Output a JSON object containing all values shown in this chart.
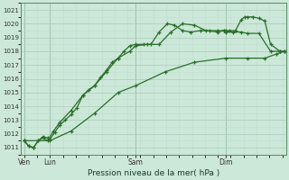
{
  "bg_color": "#cce8d8",
  "grid_color_major": "#aaccbb",
  "grid_color_minor": "#c0ddd0",
  "line_color": "#2a6e2a",
  "xlabel": "Pression niveau de la mer( hPa )",
  "ylim": [
    1010.5,
    1021.5
  ],
  "yticks": [
    1011,
    1012,
    1013,
    1014,
    1015,
    1016,
    1017,
    1018,
    1019,
    1020,
    1021
  ],
  "xlim": [
    -0.3,
    22.3
  ],
  "xtick_positions": [
    0,
    2.2,
    9.5,
    17.2
  ],
  "xtick_labels": [
    "Ven",
    "Lun",
    "Sam",
    "Dim"
  ],
  "vline_positions": [
    0,
    2.2,
    9.5,
    17.2
  ],
  "series1_x": [
    0,
    0.4,
    0.8,
    1.2,
    1.6,
    2.0,
    2.2,
    2.6,
    3.0,
    3.5,
    4.0,
    4.5,
    5.0,
    5.5,
    6.0,
    6.5,
    7.0,
    7.5,
    8.0,
    8.5,
    9.0,
    9.5,
    10.2,
    10.8,
    11.5,
    12.2,
    12.8,
    13.5,
    14.2,
    15.0,
    15.8,
    16.5,
    17.0,
    17.2,
    17.5,
    18.0,
    18.5,
    18.8,
    19.0,
    19.5,
    20.0,
    20.5,
    21.0,
    21.8,
    22.2
  ],
  "series1_y": [
    1011.5,
    1011.1,
    1011.0,
    1011.5,
    1011.8,
    1011.7,
    1011.6,
    1012.1,
    1012.6,
    1013.0,
    1013.4,
    1013.9,
    1014.8,
    1015.2,
    1015.5,
    1016.1,
    1016.6,
    1017.2,
    1017.5,
    1018.0,
    1018.4,
    1018.5,
    1018.5,
    1018.5,
    1019.4,
    1020.0,
    1019.9,
    1019.5,
    1019.4,
    1019.5,
    1019.5,
    1019.5,
    1019.5,
    1019.5,
    1019.5,
    1019.5,
    1020.3,
    1020.5,
    1020.5,
    1020.5,
    1020.4,
    1020.2,
    1018.5,
    1018.0,
    1018.0
  ],
  "series2_x": [
    0,
    0.4,
    0.8,
    1.2,
    1.6,
    2.0,
    2.5,
    3.0,
    4.0,
    5.0,
    6.0,
    7.0,
    8.0,
    9.0,
    9.5,
    10.5,
    11.5,
    12.5,
    13.5,
    14.5,
    15.5,
    16.5,
    17.0,
    17.2,
    17.8,
    18.5,
    19.0,
    20.0,
    21.0,
    21.8,
    22.2
  ],
  "series2_y": [
    1011.5,
    1011.1,
    1011.0,
    1011.5,
    1011.7,
    1011.5,
    1012.2,
    1012.8,
    1013.7,
    1014.8,
    1015.5,
    1016.5,
    1017.5,
    1018.0,
    1018.4,
    1018.5,
    1018.5,
    1019.4,
    1020.0,
    1019.9,
    1019.5,
    1019.4,
    1019.5,
    1019.4,
    1019.4,
    1019.4,
    1019.3,
    1019.3,
    1018.0,
    1018.0,
    1018.0
  ],
  "series3_x": [
    0,
    2.2,
    4.0,
    6.0,
    8.0,
    9.5,
    12.0,
    14.5,
    17.2,
    19.0,
    20.5,
    21.5,
    22.2
  ],
  "series3_y": [
    1011.5,
    1011.5,
    1012.2,
    1013.5,
    1015.0,
    1015.5,
    1016.5,
    1017.2,
    1017.5,
    1017.5,
    1017.5,
    1017.8,
    1018.0
  ]
}
